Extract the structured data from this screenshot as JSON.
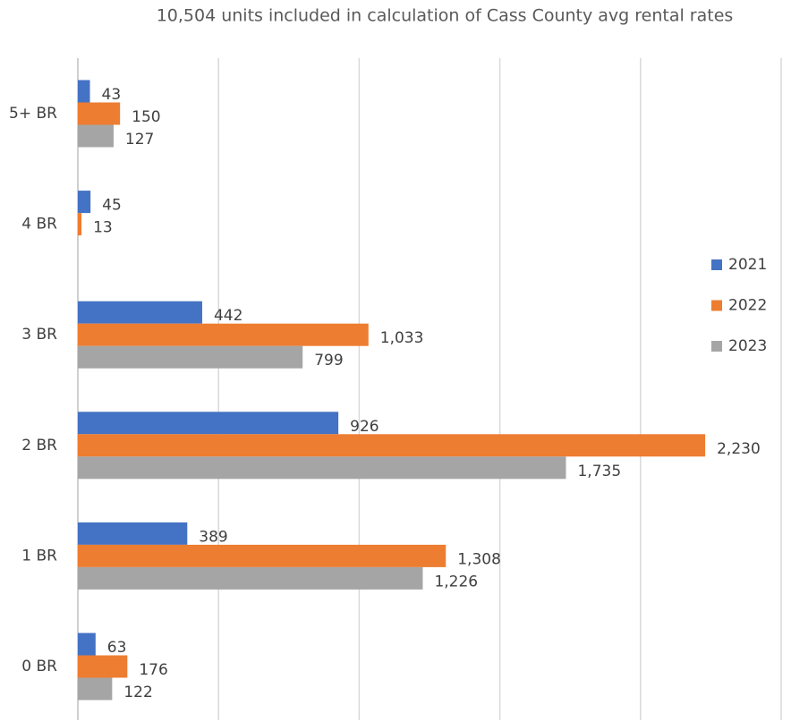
{
  "chart_data": {
    "type": "barh",
    "title": "10,504 units included in calculation of Cass County avg rental rates",
    "categories": [
      "0 BR",
      "1 BR",
      "2 BR",
      "3 BR",
      "4 BR",
      "5+ BR"
    ],
    "series": [
      {
        "name": "2021",
        "color": "#4472c4",
        "values": [
          63,
          389,
          926,
          442,
          45,
          43
        ],
        "value_labels": [
          "63",
          "389",
          "926",
          "442",
          "45",
          "43"
        ]
      },
      {
        "name": "2022",
        "color": "#ed7d31",
        "values": [
          176,
          1308,
          2230,
          1033,
          13,
          150
        ],
        "value_labels": [
          "176",
          "1,308",
          "2,230",
          "1,033",
          "13",
          "150"
        ]
      },
      {
        "name": "2023",
        "color": "#a5a5a5",
        "values": [
          122,
          1226,
          1735,
          799,
          null,
          127
        ],
        "value_labels": [
          "122",
          "1,226",
          "1,735",
          "799",
          null,
          "127"
        ]
      }
    ],
    "xlim": [
      0,
      2500
    ],
    "xticks": [
      0,
      500,
      1000,
      1500,
      2000,
      2500
    ],
    "grid": true,
    "legend": "right"
  }
}
